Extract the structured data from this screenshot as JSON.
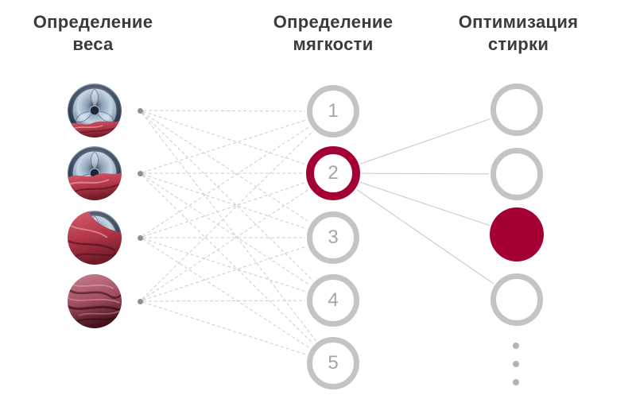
{
  "diagram_title": "AI washing process neural-network diagram",
  "columns": [
    {
      "id": "weight",
      "title": "Определение\nвеса"
    },
    {
      "id": "softness",
      "title": "Определение\nмягкости"
    },
    {
      "id": "optimization",
      "title": "Оптимизация\nстирки"
    }
  ],
  "network": {
    "input_photos": [
      {
        "name": "drum-photo-1",
        "fabric_coverage": "25%",
        "description": "барабан стиральной машины, немного красной ткани внизу"
      },
      {
        "name": "drum-photo-2",
        "fabric_coverage": "45%",
        "description": "барабан стиральной машины, красная ткань закрывает нижнюю половину"
      },
      {
        "name": "drum-photo-3",
        "fabric_coverage": "70%",
        "description": "красная ткань закрывает почти весь барабан, металл виден справа вверху"
      },
      {
        "name": "drum-photo-4",
        "fabric_coverage": "100%",
        "description": "смятая красная ткань крупным планом"
      }
    ],
    "hidden_nodes": [
      {
        "label": "1",
        "selected": false
      },
      {
        "label": "2",
        "selected": true
      },
      {
        "label": "3",
        "selected": false
      },
      {
        "label": "4",
        "selected": false
      },
      {
        "label": "5",
        "selected": false
      }
    ],
    "output_nodes": [
      {
        "selected": false
      },
      {
        "selected": false
      },
      {
        "selected": true
      },
      {
        "selected": false
      }
    ],
    "output_ellipsis_dots": 3,
    "connections": {
      "inputs_to_hidden": "each input dot connects with dashed lines to all 5 softness nodes",
      "selected_hidden_to_outputs": [
        1,
        2,
        3,
        4
      ]
    }
  },
  "colors": {
    "accent": "#a50034",
    "ring_gray": "#c4c4c4",
    "number_gray": "#a5a5a5",
    "dashed_line_gray": "#cccccc",
    "solid_line_gray": "#c6c6c6",
    "dot_gray": "#8f8f8f",
    "ellipsis_gray": "#b3b3b3",
    "title_color": "#3b3b3b"
  }
}
